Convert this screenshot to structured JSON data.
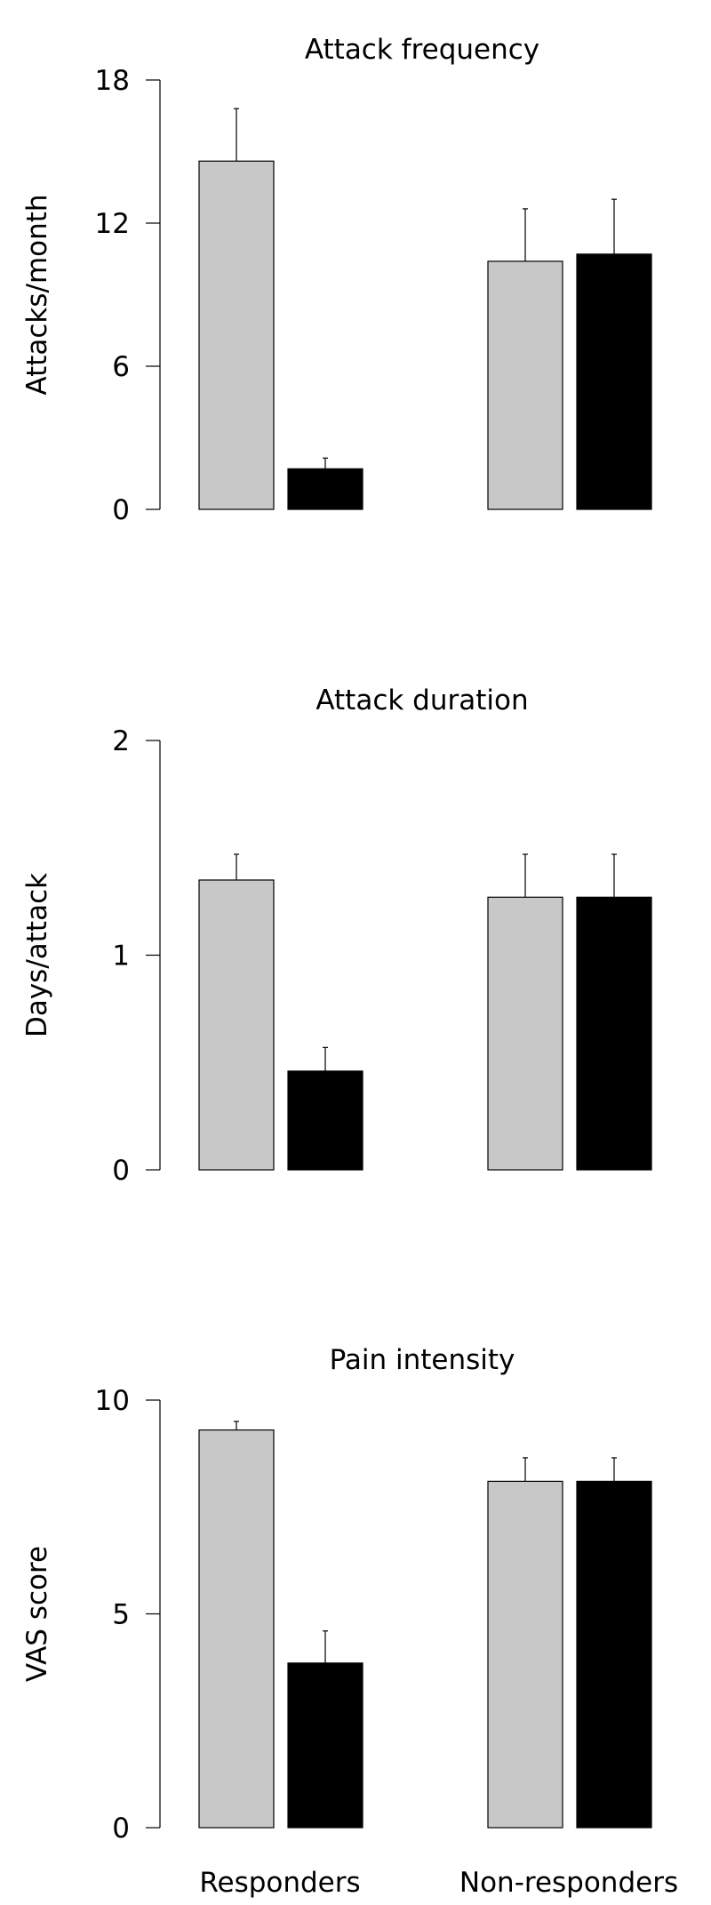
{
  "chart_data": [
    {
      "type": "bar",
      "title": "Attack frequency",
      "ylabel": "Attacks/month",
      "categories": [
        "Responders",
        "Non-responders"
      ],
      "ylim": [
        0,
        18
      ],
      "yticks": [
        0,
        6,
        12,
        18
      ],
      "series": [
        {
          "values": [
            14.6,
            10.4
          ],
          "errors": [
            2.2,
            2.2
          ],
          "color": "#c8c8c8"
        },
        {
          "values": [
            1.7,
            10.7
          ],
          "errors": [
            0.45,
            2.3
          ],
          "color": "#000000"
        }
      ],
      "grid": false
    },
    {
      "type": "bar",
      "title": "Attack duration",
      "ylabel": "Days/attack",
      "categories": [
        "Responders",
        "Non-responders"
      ],
      "ylim": [
        0,
        2
      ],
      "yticks": [
        0,
        1,
        2
      ],
      "series": [
        {
          "values": [
            1.35,
            1.27
          ],
          "errors": [
            0.12,
            0.2
          ],
          "color": "#c8c8c8"
        },
        {
          "values": [
            0.46,
            1.27
          ],
          "errors": [
            0.11,
            0.2
          ],
          "color": "#000000"
        }
      ],
      "grid": false
    },
    {
      "type": "bar",
      "title": "Pain intensity",
      "ylabel": "VAS score",
      "categories": [
        "Responders",
        "Non-responders"
      ],
      "ylim": [
        0,
        10
      ],
      "yticks": [
        0,
        5,
        10
      ],
      "series": [
        {
          "values": [
            9.3,
            8.1
          ],
          "errors": [
            0.2,
            0.55
          ],
          "color": "#c8c8c8"
        },
        {
          "values": [
            3.85,
            8.1
          ],
          "errors": [
            0.75,
            0.55
          ],
          "color": "#000000"
        }
      ],
      "grid": false
    }
  ]
}
